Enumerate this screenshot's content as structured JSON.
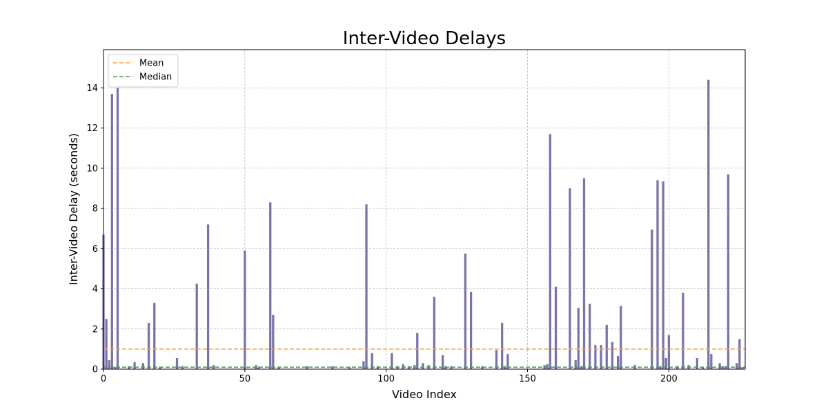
{
  "chart_data": {
    "type": "bar",
    "title": "Inter-Video Delays",
    "xlabel": "Video Index",
    "ylabel": "Inter-Video Delay (seconds)",
    "xlim": [
      0,
      227
    ],
    "ylim": [
      0,
      15.9
    ],
    "x_ticks": [
      0,
      50,
      100,
      150,
      200
    ],
    "y_ticks": [
      0,
      2,
      4,
      6,
      8,
      10,
      12,
      14
    ],
    "grid": true,
    "legend_position": "top-left",
    "bar_color": "#7b72a8",
    "mean": 1.0,
    "median": 0.1,
    "series": [
      {
        "name": "Mean",
        "value": 1.0,
        "color": "#ff9f40",
        "style": "dashed"
      },
      {
        "name": "Median",
        "value": 0.1,
        "color": "#4c9a4c",
        "style": "dashed"
      }
    ],
    "points": [
      [
        0,
        6.7
      ],
      [
        1,
        2.5
      ],
      [
        2,
        0.45
      ],
      [
        3,
        13.7
      ],
      [
        4,
        0.1
      ],
      [
        5,
        14.0
      ],
      [
        9,
        0.15
      ],
      [
        11,
        0.35
      ],
      [
        14,
        0.3
      ],
      [
        16,
        2.3
      ],
      [
        18,
        3.3
      ],
      [
        20,
        0.1
      ],
      [
        26,
        0.55
      ],
      [
        28,
        0.15
      ],
      [
        33,
        4.25
      ],
      [
        37,
        7.2
      ],
      [
        39,
        0.2
      ],
      [
        50,
        5.9
      ],
      [
        54,
        0.2
      ],
      [
        55,
        0.12
      ],
      [
        59,
        8.3
      ],
      [
        60,
        2.7
      ],
      [
        62,
        0.1
      ],
      [
        72,
        0.15
      ],
      [
        81,
        0.15
      ],
      [
        87,
        0.1
      ],
      [
        92,
        0.4
      ],
      [
        93,
        8.2
      ],
      [
        95,
        0.8
      ],
      [
        97,
        0.15
      ],
      [
        102,
        0.8
      ],
      [
        104,
        0.15
      ],
      [
        106,
        0.25
      ],
      [
        108,
        0.15
      ],
      [
        110,
        0.2
      ],
      [
        111,
        1.8
      ],
      [
        113,
        0.3
      ],
      [
        115,
        0.2
      ],
      [
        117,
        3.6
      ],
      [
        120,
        0.7
      ],
      [
        121,
        0.15
      ],
      [
        123,
        0.15
      ],
      [
        128,
        5.75
      ],
      [
        130,
        3.85
      ],
      [
        134,
        0.15
      ],
      [
        139,
        0.95
      ],
      [
        141,
        2.3
      ],
      [
        142,
        0.15
      ],
      [
        143,
        0.75
      ],
      [
        156,
        0.2
      ],
      [
        157,
        0.25
      ],
      [
        158,
        11.7
      ],
      [
        160,
        4.1
      ],
      [
        165,
        9.0
      ],
      [
        167,
        0.45
      ],
      [
        168,
        3.05
      ],
      [
        169,
        0.15
      ],
      [
        170,
        9.5
      ],
      [
        172,
        3.25
      ],
      [
        174,
        1.2
      ],
      [
        176,
        1.2
      ],
      [
        178,
        2.2
      ],
      [
        180,
        1.35
      ],
      [
        182,
        0.65
      ],
      [
        183,
        3.15
      ],
      [
        188,
        0.2
      ],
      [
        194,
        6.95
      ],
      [
        196,
        9.4
      ],
      [
        197,
        0.15
      ],
      [
        198,
        9.35
      ],
      [
        199,
        0.55
      ],
      [
        200,
        1.7
      ],
      [
        203,
        0.15
      ],
      [
        205,
        3.8
      ],
      [
        207,
        0.2
      ],
      [
        210,
        0.55
      ],
      [
        212,
        0.1
      ],
      [
        214,
        14.4
      ],
      [
        215,
        0.75
      ],
      [
        218,
        0.3
      ],
      [
        219,
        0.15
      ],
      [
        220,
        0.15
      ],
      [
        221,
        9.7
      ],
      [
        224,
        0.3
      ],
      [
        225,
        1.5
      ],
      [
        226,
        0.1
      ]
    ]
  }
}
